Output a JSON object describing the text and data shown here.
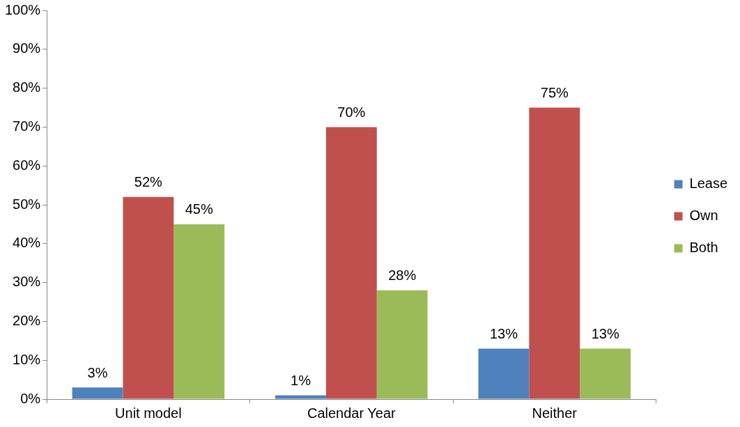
{
  "chart_data": {
    "type": "bar",
    "categories": [
      "Unit model",
      "Calendar Year",
      "Neither"
    ],
    "series": [
      {
        "name": "Lease",
        "color": "#4f81bd",
        "values": [
          3,
          1,
          13
        ],
        "value_labels": [
          "3%",
          "1%",
          "13%"
        ]
      },
      {
        "name": "Own",
        "color": "#c0504d",
        "values": [
          52,
          70,
          75
        ],
        "value_labels": [
          "52%",
          "70%",
          "75%"
        ]
      },
      {
        "name": "Both",
        "color": "#9bbb59",
        "values": [
          45,
          28,
          13
        ],
        "value_labels": [
          "45%",
          "28%",
          "13%"
        ]
      }
    ],
    "ylim": [
      0,
      100
    ],
    "yticks": [
      {
        "value": 0,
        "label": "0%"
      },
      {
        "value": 10,
        "label": "10%"
      },
      {
        "value": 20,
        "label": "20%"
      },
      {
        "value": 30,
        "label": "30%"
      },
      {
        "value": 40,
        "label": "40%"
      },
      {
        "value": 50,
        "label": "50%"
      },
      {
        "value": 60,
        "label": "60%"
      },
      {
        "value": 70,
        "label": "70%"
      },
      {
        "value": 80,
        "label": "80%"
      },
      {
        "value": 90,
        "label": "90%"
      },
      {
        "value": 100,
        "label": "100%"
      }
    ],
    "grid": false,
    "legend": "right"
  }
}
